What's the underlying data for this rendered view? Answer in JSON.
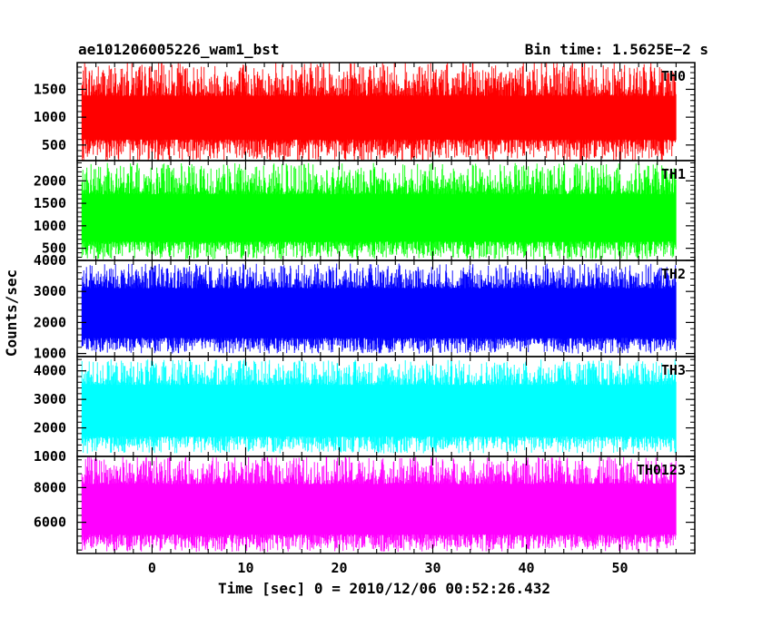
{
  "chart_data": {
    "type": "line",
    "title": "ae101206005226_wam1_bst",
    "subtitle": "Bin time: 1.5625E−2 s",
    "xlabel": "Time [sec] 0 = 2010/12/06 00:52:26.432",
    "ylabel": "Counts/sec",
    "xlim": [
      -8,
      58
    ],
    "x_data_range": [
      -7.5,
      56
    ],
    "x_ticks": [
      0,
      10,
      20,
      30,
      40,
      50
    ],
    "x_tick_labels": [
      "0",
      "10",
      "20",
      "30",
      "40",
      "50"
    ],
    "grid": false,
    "panels": [
      {
        "name": "TH0",
        "color": "#ff0000",
        "ylim": [
          220,
          1980
        ],
        "y_ticks": [
          500,
          1000,
          1500
        ],
        "y_tick_labels": [
          "500",
          "1000",
          "1500"
        ],
        "level": {
          "low": 200,
          "q_low": 600,
          "median": 1000,
          "q_high": 1380,
          "high": 2000
        }
      },
      {
        "name": "TH1",
        "color": "#00ff00",
        "ylim": [
          230,
          2450
        ],
        "y_ticks": [
          500,
          1000,
          1500,
          2000
        ],
        "y_tick_labels": [
          "500",
          "1000",
          "1500",
          "2000"
        ],
        "level": {
          "low": 250,
          "q_low": 650,
          "median": 1150,
          "q_high": 1700,
          "high": 2400
        }
      },
      {
        "name": "TH2",
        "color": "#0000ff",
        "ylim": [
          900,
          4000
        ],
        "y_ticks": [
          1000,
          2000,
          3000,
          4000
        ],
        "y_tick_labels": [
          "1000",
          "2000",
          "3000",
          "4000"
        ],
        "level": {
          "low": 1000,
          "q_low": 1500,
          "median": 2300,
          "q_high": 3100,
          "high": 3900
        }
      },
      {
        "name": "TH3",
        "color": "#00ffff",
        "ylim": [
          1000,
          4500
        ],
        "y_ticks": [
          1000,
          2000,
          3000,
          4000
        ],
        "y_tick_labels": [
          "1000",
          "2000",
          "3000",
          "4000"
        ],
        "level": {
          "low": 1100,
          "q_low": 1700,
          "median": 2500,
          "q_high": 3500,
          "high": 4400
        }
      },
      {
        "name": "TH0123",
        "color": "#ff00ff",
        "ylim": [
          4200,
          9800
        ],
        "y_ticks": [
          6000,
          8000
        ],
        "y_tick_labels": [
          "6000",
          "8000"
        ],
        "level": {
          "low": 4300,
          "q_low": 5300,
          "median": 6800,
          "q_high": 8200,
          "high": 9800
        }
      }
    ]
  }
}
